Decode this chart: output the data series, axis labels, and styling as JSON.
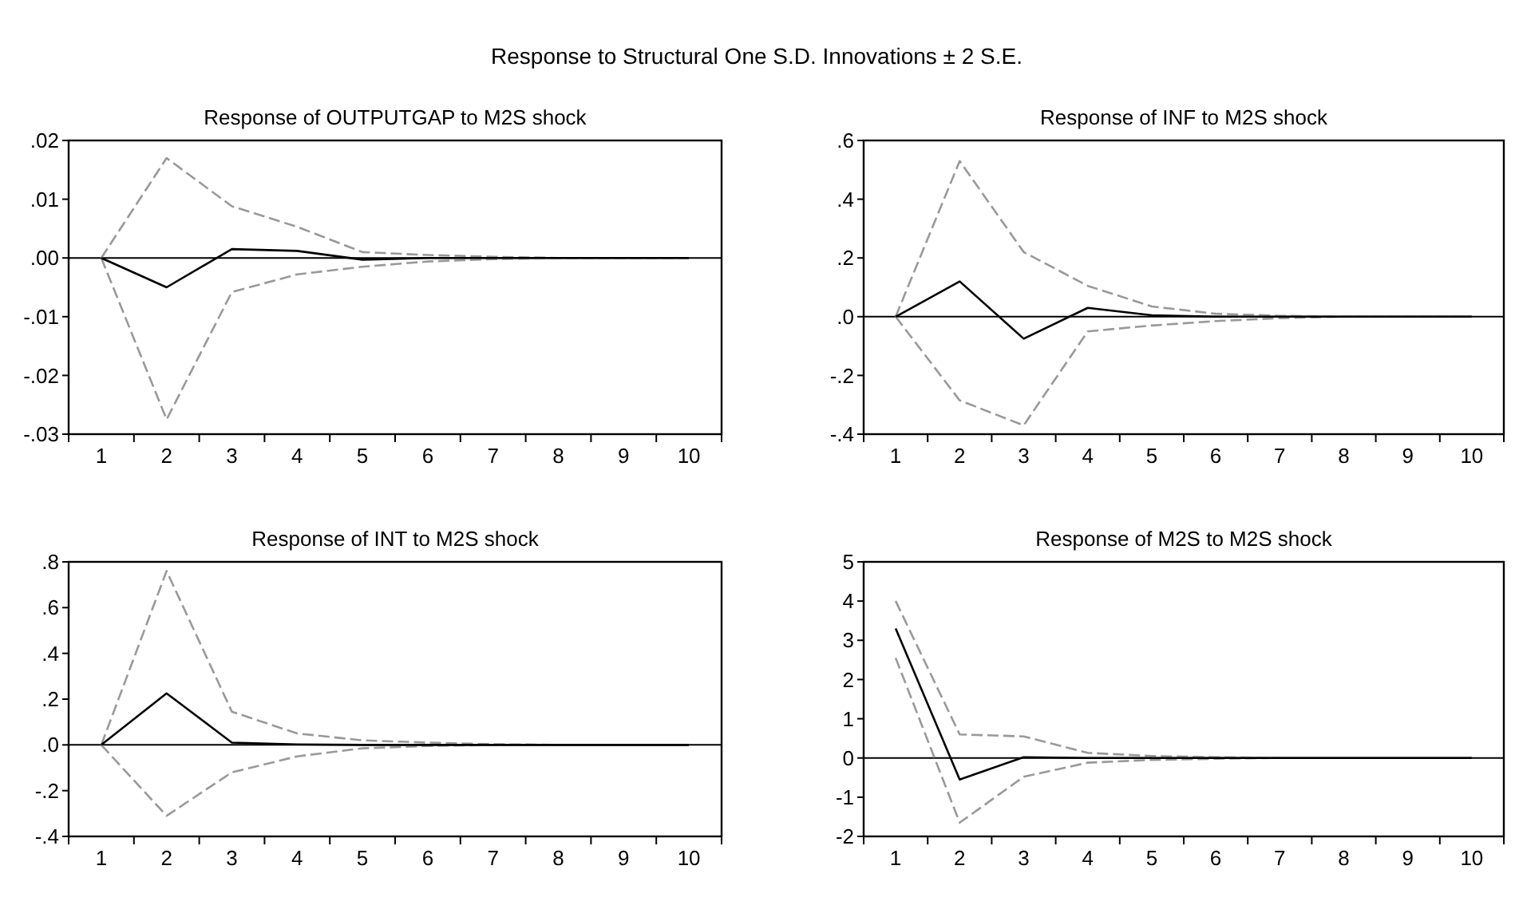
{
  "chart_data": [
    {
      "type": "line",
      "title": "Response  of OUTPUTGAP to M2S shock",
      "annotations": [
        "Response  to Structural One S.D. Innovations ± 2 S.E."
      ],
      "categories": [
        "1",
        "2",
        "3",
        "4",
        "5",
        "6",
        "7",
        "8",
        "9",
        "10"
      ],
      "ylim": [
        -0.03,
        0.02
      ],
      "yticks": [
        {
          "value": -0.03,
          "label": "-.03"
        },
        {
          "value": -0.02,
          "label": "-.02"
        },
        {
          "value": -0.01,
          "label": "-.01"
        },
        {
          "value": 0,
          "label": ".00"
        },
        {
          "value": 0.01,
          "label": ".01"
        },
        {
          "value": 0.02,
          "label": ".02"
        }
      ],
      "ref_lines": [
        {
          "axis": "y",
          "value": 0,
          "color": "#000000"
        }
      ],
      "series": [
        {
          "color": "#999999",
          "line_style": "dashed",
          "values": [
            0,
            0.017,
            0.0088,
            0.0053,
            0.001,
            0.0005,
            0.0002,
            0,
            0,
            0
          ]
        },
        {
          "color": "#999999",
          "line_style": "dashed",
          "values": [
            0,
            -0.0275,
            -0.0058,
            -0.0028,
            -0.0015,
            -0.0006,
            -0.0002,
            0,
            0,
            0
          ]
        },
        {
          "color": "#000000",
          "line_style": "solid",
          "values": [
            0,
            -0.005,
            0.0015,
            0.0012,
            -0.0003,
            0,
            0,
            0,
            0,
            0
          ]
        }
      ]
    },
    {
      "type": "line",
      "title": "Response  of INF to M2S shock",
      "categories": [
        "1",
        "2",
        "3",
        "4",
        "5",
        "6",
        "7",
        "8",
        "9",
        "10"
      ],
      "ylim": [
        -0.4,
        0.6
      ],
      "yticks": [
        {
          "value": -0.4,
          "label": "-.4"
        },
        {
          "value": -0.2,
          "label": "-.2"
        },
        {
          "value": 0,
          "label": ".0"
        },
        {
          "value": 0.2,
          "label": ".2"
        },
        {
          "value": 0.4,
          "label": ".4"
        },
        {
          "value": 0.6,
          "label": ".6"
        }
      ],
      "ref_lines": [
        {
          "axis": "y",
          "value": 0,
          "color": "#000000"
        }
      ],
      "series": [
        {
          "color": "#999999",
          "line_style": "dashed",
          "values": [
            0,
            0.53,
            0.22,
            0.105,
            0.035,
            0.01,
            0.003,
            0,
            0,
            0
          ]
        },
        {
          "color": "#999999",
          "line_style": "dashed",
          "values": [
            0,
            -0.285,
            -0.37,
            -0.05,
            -0.03,
            -0.015,
            -0.005,
            0,
            0,
            0
          ]
        },
        {
          "color": "#000000",
          "line_style": "solid",
          "values": [
            0,
            0.12,
            -0.075,
            0.03,
            0.005,
            0,
            0,
            0,
            0,
            0
          ]
        }
      ]
    },
    {
      "type": "line",
      "title": "Response  of INT to M2S shock",
      "categories": [
        "1",
        "2",
        "3",
        "4",
        "5",
        "6",
        "7",
        "8",
        "9",
        "10"
      ],
      "ylim": [
        -0.4,
        0.8
      ],
      "yticks": [
        {
          "value": -0.4,
          "label": "-.4"
        },
        {
          "value": -0.2,
          "label": "-.2"
        },
        {
          "value": 0,
          "label": ".0"
        },
        {
          "value": 0.2,
          "label": ".2"
        },
        {
          "value": 0.4,
          "label": ".4"
        },
        {
          "value": 0.6,
          "label": ".6"
        },
        {
          "value": 0.8,
          "label": ".8"
        }
      ],
      "ref_lines": [
        {
          "axis": "y",
          "value": 0,
          "color": "#000000"
        }
      ],
      "series": [
        {
          "color": "#999999",
          "line_style": "dashed",
          "values": [
            0,
            0.76,
            0.145,
            0.05,
            0.02,
            0.01,
            0.003,
            0,
            0,
            0
          ]
        },
        {
          "color": "#999999",
          "line_style": "dashed",
          "values": [
            0,
            -0.31,
            -0.12,
            -0.05,
            -0.015,
            -0.005,
            0,
            0,
            0,
            0
          ]
        },
        {
          "color": "#000000",
          "line_style": "solid",
          "values": [
            0,
            0.225,
            0.01,
            0.002,
            0,
            0,
            0,
            0,
            0,
            0
          ]
        }
      ]
    },
    {
      "type": "line",
      "title": "Response  of M2S to M2S shock",
      "categories": [
        "1",
        "2",
        "3",
        "4",
        "5",
        "6",
        "7",
        "8",
        "9",
        "10"
      ],
      "ylim": [
        -2,
        5
      ],
      "yticks": [
        -2,
        -1,
        0,
        1,
        2,
        3,
        4,
        5
      ],
      "ref_lines": [
        {
          "axis": "y",
          "value": 0,
          "color": "#000000"
        }
      ],
      "series": [
        {
          "color": "#999999",
          "line_style": "dashed",
          "values": [
            4.0,
            0.6,
            0.55,
            0.13,
            0.05,
            0.02,
            0,
            0,
            0,
            0
          ]
        },
        {
          "color": "#999999",
          "line_style": "dashed",
          "values": [
            2.55,
            -1.65,
            -0.48,
            -0.12,
            -0.05,
            -0.02,
            0,
            0,
            0,
            0
          ]
        },
        {
          "color": "#000000",
          "line_style": "solid",
          "values": [
            3.3,
            -0.55,
            0.02,
            0,
            0,
            0,
            0,
            0,
            0,
            0
          ]
        }
      ]
    }
  ]
}
